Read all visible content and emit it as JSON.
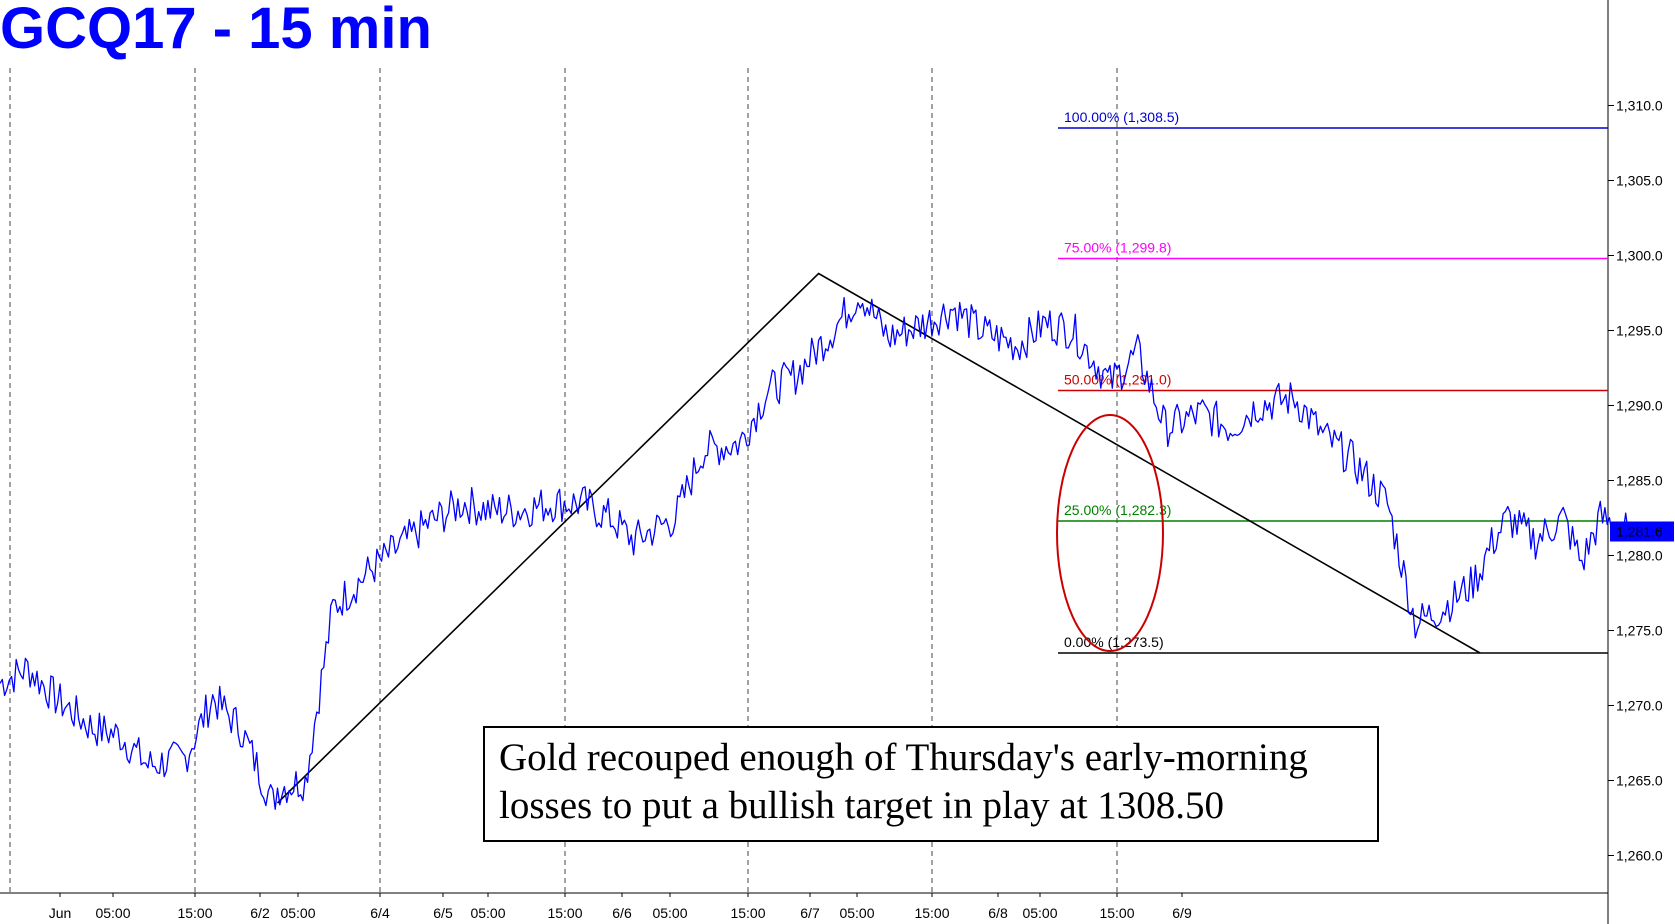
{
  "title": "GCQ17 - 15 min",
  "caption": "Gold recouped enough of Thursday's early-morning losses to put a bullish target in play at 1308.50",
  "chart_data": {
    "type": "line",
    "symbol": "GCQ17",
    "interval": "15 min",
    "ylim": [
      1257.0,
      1317.0
    ],
    "y_ticks": [
      1260.0,
      1265.0,
      1270.0,
      1275.0,
      1280.0,
      1285.0,
      1290.0,
      1295.0,
      1300.0,
      1305.0,
      1310.0
    ],
    "y_tick_labels": [
      "1,260.0",
      "1,265.0",
      "1,270.0",
      "1,275.0",
      "1,280.0",
      "1,285.0",
      "1,290.0",
      "1,295.0",
      "1,300.0",
      "1,305.0",
      "1,310.0"
    ],
    "x_ticks": [
      "Jun",
      "05:00",
      "15:00",
      "6/2",
      "05:00",
      "6/4",
      "6/5",
      "05:00",
      "15:00",
      "6/6",
      "05:00",
      "15:00",
      "6/7",
      "05:00",
      "15:00",
      "6/8",
      "05:00",
      "15:00",
      "6/9"
    ],
    "sessions": [
      "Jun 1",
      "6/2",
      "6/4",
      "6/5",
      "6/6",
      "6/7",
      "6/8",
      "6/9"
    ],
    "last_price": 1281.6,
    "last_price_label": "1,281.6",
    "series": [
      {
        "color": "#0000ff",
        "x": [
          0,
          0.3,
          0.6,
          1.0,
          1.3,
          1.6,
          2.0,
          2.3,
          2.6,
          2.95,
          3.0,
          3.3,
          3.6,
          4.0,
          4.3,
          4.6,
          5.0,
          5.3,
          5.6,
          6.0,
          6.3,
          6.6,
          6.85,
          7.0,
          7.3,
          7.6,
          8.0,
          8.3,
          8.6,
          9.0,
          9.3,
          9.6,
          10.0,
          10.3,
          10.6,
          11.0,
          11.3,
          11.6,
          12.0,
          12.3,
          12.6,
          13.0,
          13.3,
          13.6,
          14.0,
          14.3,
          14.6,
          15.0,
          15.3,
          15.6,
          15.9,
          16.0,
          16.1,
          16.3,
          16.6,
          16.9,
          17.1,
          17.3,
          17.6
        ],
        "values": [
          1271.5,
          1272.5,
          1270.5,
          1268.5,
          1268.0,
          1266.0,
          1266.5,
          1270.5,
          1268.5,
          1263.5,
          1264.5,
          1265.0,
          1276.5,
          1279.0,
          1280.5,
          1282.0,
          1283.5,
          1283.0,
          1283.0,
          1283.5,
          1283.5,
          1282.5,
          1281.0,
          1281.5,
          1282.5,
          1287.0,
          1287.5,
          1291.0,
          1292.0,
          1295.0,
          1297.5,
          1294.5,
          1295.5,
          1296.5,
          1295.0,
          1294.0,
          1295.5,
          1295.0,
          1291.5,
          1293.5,
          1288.5,
          1289.5,
          1288.5,
          1290.0,
          1290.5,
          1288.0,
          1286.5,
          1283.5,
          1275.5,
          1276.5,
          1278.0,
          1279.0,
          1280.5,
          1282.5,
          1281.0,
          1282.5,
          1279.5,
          1282.5,
          1281.6
        ]
      }
    ],
    "swing_line": {
      "x": [
        3.0,
        8.85,
        16.0
      ],
      "values": [
        1263.5,
        1298.8,
        1273.5
      ]
    },
    "fib_levels": [
      {
        "label": "100.00% (1,308.5)",
        "value": 1308.5,
        "color": "#0000cc"
      },
      {
        "label": "75.00% (1,299.8)",
        "value": 1299.8,
        "color": "#ff00ff"
      },
      {
        "label": "50.00% (1,291.0)",
        "value": 1291.0,
        "color": "#cc0000"
      },
      {
        "label": "25.00% (1,282.3)",
        "value": 1282.3,
        "color": "#008000"
      },
      {
        "label": "0.00% (1,273.5)",
        "value": 1273.5,
        "color": "#000000"
      }
    ],
    "highlight_ellipse": {
      "color": "#cc0000"
    }
  }
}
